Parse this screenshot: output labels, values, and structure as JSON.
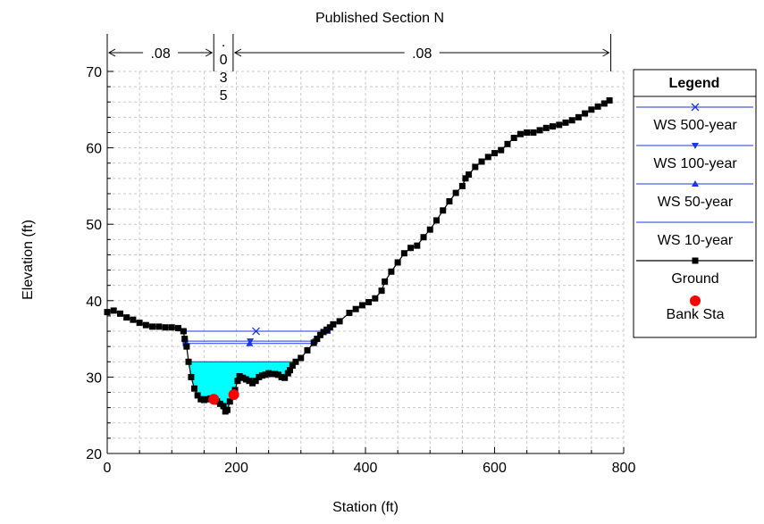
{
  "chart_data": {
    "type": "line",
    "title": "Published Section N",
    "xlabel": "Station (ft)",
    "ylabel": "Elevation (ft)",
    "xlim": [
      0,
      800
    ],
    "ylim": [
      20,
      70
    ],
    "x_ticks": [
      0,
      200,
      400,
      600,
      800
    ],
    "y_ticks": [
      20,
      30,
      40,
      50,
      60,
      70
    ],
    "grid": true,
    "legend_position": "right",
    "legend_title": "Legend",
    "mannings_n": [
      {
        "label": ".08",
        "from": 0,
        "to": 165
      },
      {
        "label": ".035",
        "from": 165,
        "to": 195
      },
      {
        "label": ".08",
        "from": 195,
        "to": 780
      }
    ],
    "water_surfaces": [
      {
        "name": "WS 500-year",
        "elevation": 36.0,
        "x_start": 119,
        "x_end": 342,
        "marker": "x",
        "color": "#1c39d6"
      },
      {
        "name": "WS 100-year",
        "elevation": 34.7,
        "x_start": 121,
        "x_end": 322,
        "marker": "triangle-down",
        "color": "#1c39d6"
      },
      {
        "name": "WS 50-year",
        "elevation": 34.4,
        "x_start": 121,
        "x_end": 320,
        "marker": "triangle-up",
        "color": "#1c39d6"
      },
      {
        "name": "WS 10-year",
        "elevation": 32.0,
        "x_start": 126,
        "x_end": 292,
        "marker": "none",
        "color": "#1c39d6",
        "fill": "#00ffff"
      }
    ],
    "ground": {
      "name": "Ground",
      "color": "#000000",
      "x": [
        0,
        10,
        20,
        30,
        40,
        50,
        60,
        70,
        80,
        90,
        100,
        110,
        118,
        120,
        123,
        126,
        130,
        135,
        140,
        145,
        150,
        155,
        160,
        165,
        170,
        175,
        180,
        183,
        186,
        190,
        195,
        198,
        202,
        205,
        210,
        215,
        220,
        225,
        230,
        235,
        240,
        245,
        250,
        255,
        260,
        265,
        270,
        275,
        280,
        283,
        287,
        292,
        300,
        310,
        320,
        325,
        330,
        335,
        340,
        345,
        350,
        360,
        375,
        385,
        395,
        405,
        415,
        425,
        430,
        440,
        450,
        460,
        470,
        480,
        490,
        500,
        510,
        520,
        530,
        540,
        550,
        555,
        560,
        570,
        580,
        590,
        600,
        610,
        620,
        630,
        640,
        650,
        660,
        670,
        680,
        690,
        700,
        710,
        720,
        730,
        740,
        750,
        760,
        770,
        778
      ],
      "y": [
        38.5,
        38.7,
        38.3,
        37.8,
        37.5,
        37.1,
        36.8,
        36.6,
        36.6,
        36.5,
        36.5,
        36.4,
        36.0,
        35.0,
        34.0,
        32.0,
        30.0,
        28.5,
        27.6,
        27.1,
        27.0,
        27.1,
        27.2,
        27.0,
        26.8,
        26.5,
        26.2,
        25.5,
        25.7,
        26.8,
        27.7,
        28.3,
        29.5,
        30.1,
        29.9,
        29.7,
        29.5,
        29.2,
        29.5,
        30.0,
        30.2,
        30.3,
        30.5,
        30.4,
        30.4,
        30.3,
        30.0,
        29.9,
        30.5,
        30.9,
        31.5,
        32.0,
        32.5,
        33.5,
        34.5,
        35.0,
        35.5,
        35.9,
        36.2,
        36.5,
        36.9,
        37.3,
        38.4,
        38.9,
        39.4,
        39.8,
        40.3,
        41.3,
        42.5,
        43.8,
        45.0,
        46.2,
        46.9,
        47.2,
        48.3,
        49.3,
        50.5,
        51.8,
        53.0,
        54.1,
        55.0,
        56.0,
        56.5,
        57.5,
        58.2,
        58.8,
        59.3,
        59.7,
        60.5,
        61.3,
        61.8,
        62.0,
        62.0,
        62.3,
        62.6,
        62.8,
        63.0,
        63.3,
        63.6,
        64.0,
        64.5,
        65.0,
        65.4,
        65.8,
        66.2
      ]
    },
    "bank_stations": {
      "name": "Bank Sta",
      "color": "#ff0000",
      "points": [
        [
          165,
          27.1
        ],
        [
          196,
          27.7
        ]
      ]
    }
  }
}
